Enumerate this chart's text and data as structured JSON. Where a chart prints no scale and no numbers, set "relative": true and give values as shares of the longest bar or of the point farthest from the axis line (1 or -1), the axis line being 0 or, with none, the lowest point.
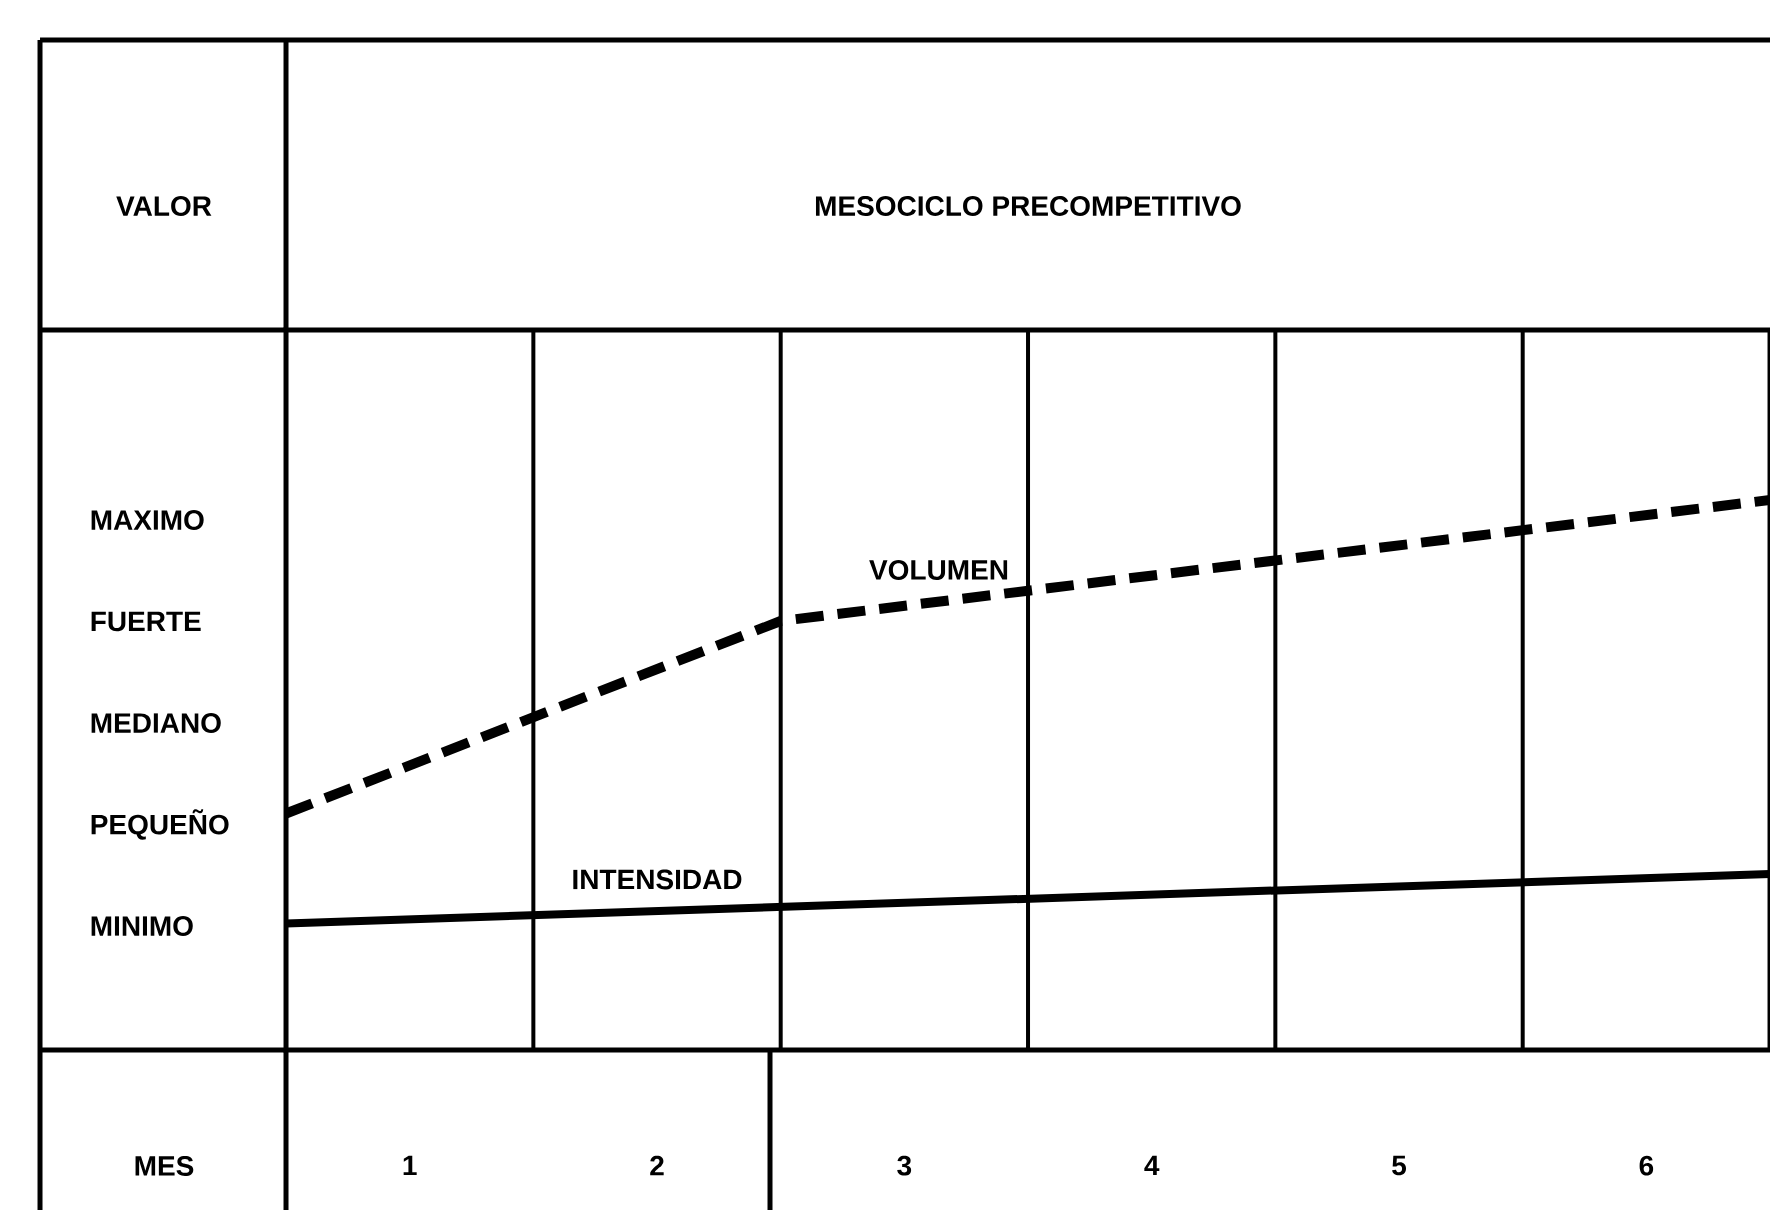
{
  "chart_data": {
    "type": "line",
    "title": "MESOCICLO PRECOMPETITIVO",
    "xlabel": "MES",
    "xlim": [
      0,
      6
    ],
    "xticks": [
      {
        "value": 0.5,
        "label": "1"
      },
      {
        "value": 1.5,
        "label": "2"
      },
      {
        "value": 2.5,
        "label": "3"
      },
      {
        "value": 3.5,
        "label": "4"
      },
      {
        "value": 4.5,
        "label": "5"
      },
      {
        "value": 5.5,
        "label": "6"
      },
      {
        "value": 1,
        "label": null
      },
      {
        "value": 2,
        "label": null
      },
      {
        "value": 3,
        "label": null
      },
      {
        "value": 4,
        "label": null
      },
      {
        "value": 5,
        "label": null
      }
    ],
    "relative": true,
    "annotations": [
      "VALOR",
      "MAXIMO",
      "FUERTE",
      "MEDIANO",
      "PEQUEÑO",
      "MINIMO"
    ],
    "grid": "x",
    "marker": "none",
    "series": [
      {
        "name": "VOLUMEN",
        "color": "#000000",
        "line_style": "dashed",
        "x": [
          0,
          2,
          6
        ],
        "values": [
          0.43,
          0.78,
          1.0
        ]
      },
      {
        "name": "INTENSIDAD",
        "color": "#000000",
        "line_style": "solid",
        "x": [
          0,
          6
        ],
        "values": [
          0.23,
          0.32
        ]
      }
    ]
  }
}
